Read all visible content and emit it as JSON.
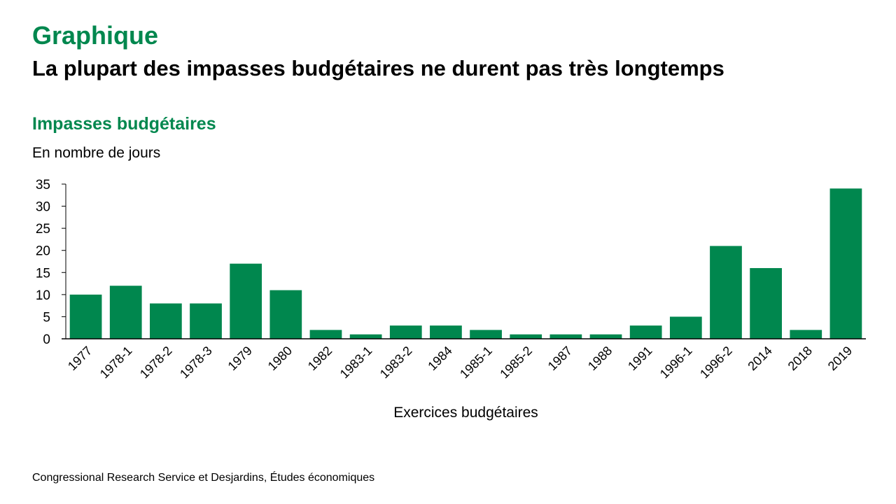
{
  "header": {
    "kicker": "Graphique",
    "title": "La plupart des impasses budgétaires ne durent pas très longtemps"
  },
  "chart_data": {
    "type": "bar",
    "title": "Impasses budgétaires",
    "subtitle": "En nombre de jours",
    "xlabel": "Exercices budgétaires",
    "ylabel": "En nombre de jours",
    "ylim": [
      0,
      35
    ],
    "yticks": [
      0,
      5,
      10,
      15,
      20,
      25,
      30,
      35
    ],
    "grid": false,
    "legend": "none",
    "bar_color": "#00874e",
    "categories": [
      "1977",
      "1978-1",
      "1978-2",
      "1978-3",
      "1979",
      "1980",
      "1982",
      "1983-1",
      "1983-2",
      "1984",
      "1985-1",
      "1985-2",
      "1987",
      "1988",
      "1991",
      "1996-1",
      "1996-2",
      "2014",
      "2018",
      "2019"
    ],
    "values": [
      10,
      12,
      8,
      8,
      17,
      11,
      2,
      1,
      3,
      3,
      2,
      1,
      1,
      1,
      3,
      5,
      21,
      16,
      2,
      34
    ]
  },
  "footer": {
    "source": "Congressional Research Service et Desjardins, Études économiques"
  }
}
